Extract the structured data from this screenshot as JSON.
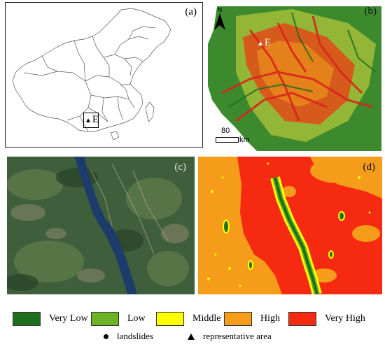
{
  "panels": {
    "a": {
      "label": "(a)",
      "marker": "E"
    },
    "b": {
      "label": "(b)",
      "marker": "E",
      "north": "N",
      "scale_value": "80",
      "scale_unit": "km"
    },
    "c": {
      "label": "(c)"
    },
    "d": {
      "label": "(d)"
    }
  },
  "legend": {
    "classes": [
      {
        "label": "Very Low",
        "color": "#1e6f1e"
      },
      {
        "label": "Low",
        "color": "#6bb324"
      },
      {
        "label": "Middle",
        "color": "#ffff00"
      },
      {
        "label": "High",
        "color": "#f59d1a"
      },
      {
        "label": "Very High",
        "color": "#f52a10"
      }
    ],
    "symbols": [
      {
        "label": "landslides",
        "icon": "dot-icon"
      },
      {
        "label": "representative area",
        "icon": "triangle-icon"
      }
    ]
  }
}
